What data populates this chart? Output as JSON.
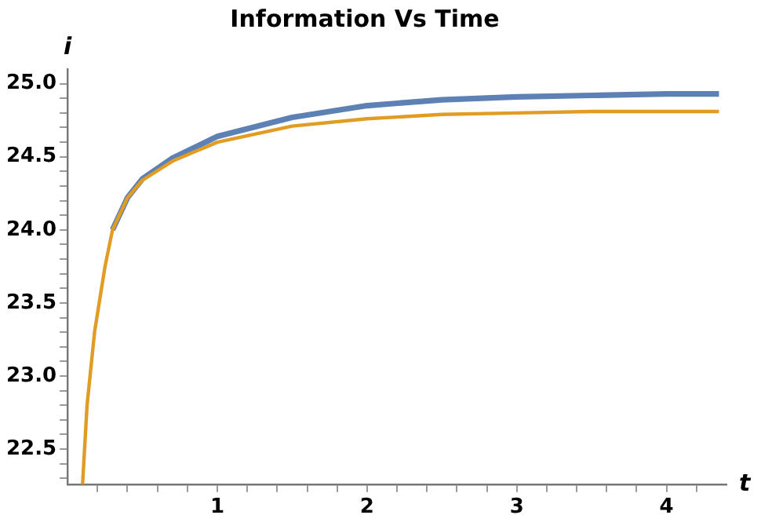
{
  "chart_data": {
    "type": "line",
    "title": "Information Vs Time",
    "xlabel": "t",
    "ylabel": "i",
    "x": [
      0.1,
      0.13,
      0.18,
      0.25,
      0.3,
      0.4,
      0.5,
      0.7,
      1,
      1.5,
      2,
      2.5,
      3,
      3.5,
      4,
      4.35
    ],
    "series": [
      {
        "color": "#5e81b5",
        "values": [
          null,
          null,
          null,
          null,
          24.0,
          24.22,
          24.35,
          24.49,
          24.64,
          24.77,
          24.85,
          24.89,
          24.91,
          24.92,
          24.93,
          24.93
        ]
      },
      {
        "color": "#e19c24",
        "values": [
          22.26,
          22.8,
          23.3,
          23.75,
          24.0,
          24.22,
          24.34,
          24.47,
          24.6,
          24.71,
          24.76,
          24.79,
          24.8,
          24.81,
          24.81,
          24.81
        ]
      }
    ],
    "xlim": [
      0,
      4.4
    ],
    "ylim": [
      22.26,
      25.1
    ],
    "xticks": [
      {
        "value": 0.2,
        "label": null
      },
      {
        "value": 0.4,
        "label": null
      },
      {
        "value": 0.6,
        "label": null
      },
      {
        "value": 0.8,
        "label": null
      },
      1,
      {
        "value": 1.2,
        "label": null
      },
      {
        "value": 1.4,
        "label": null
      },
      {
        "value": 1.6,
        "label": null
      },
      {
        "value": 1.8,
        "label": null
      },
      2,
      {
        "value": 2.2,
        "label": null
      },
      {
        "value": 2.4,
        "label": null
      },
      {
        "value": 2.6,
        "label": null
      },
      {
        "value": 2.8,
        "label": null
      },
      3,
      {
        "value": 3.2,
        "label": null
      },
      {
        "value": 3.4,
        "label": null
      },
      {
        "value": 3.6,
        "label": null
      },
      {
        "value": 3.8,
        "label": null
      },
      4,
      {
        "value": 4.2,
        "label": null
      }
    ],
    "yticks": [
      {
        "value": 22.3,
        "label": null
      },
      {
        "value": 22.4,
        "label": null
      },
      {
        "value": 22.5,
        "label": "22.5"
      },
      {
        "value": 22.6,
        "label": null
      },
      {
        "value": 22.7,
        "label": null
      },
      {
        "value": 22.8,
        "label": null
      },
      {
        "value": 22.9,
        "label": null
      },
      {
        "value": 23,
        "label": "23.0"
      },
      {
        "value": 23.1,
        "label": null
      },
      {
        "value": 23.2,
        "label": null
      },
      {
        "value": 23.3,
        "label": null
      },
      {
        "value": 23.4,
        "label": null
      },
      {
        "value": 23.5,
        "label": "23.5"
      },
      {
        "value": 23.6,
        "label": null
      },
      {
        "value": 23.7,
        "label": null
      },
      {
        "value": 23.8,
        "label": null
      },
      {
        "value": 23.9,
        "label": null
      },
      {
        "value": 24,
        "label": "24.0"
      },
      {
        "value": 24.1,
        "label": null
      },
      {
        "value": 24.2,
        "label": null
      },
      {
        "value": 24.3,
        "label": null
      },
      {
        "value": 24.4,
        "label": null
      },
      {
        "value": 24.5,
        "label": "24.5"
      },
      {
        "value": 24.6,
        "label": null
      },
      {
        "value": 24.7,
        "label": null
      },
      {
        "value": 24.8,
        "label": null
      },
      {
        "value": 24.9,
        "label": null
      },
      {
        "value": 25,
        "label": "25.0"
      }
    ],
    "grid": false,
    "legend": false,
    "line_style": "solid",
    "marker": "none"
  }
}
